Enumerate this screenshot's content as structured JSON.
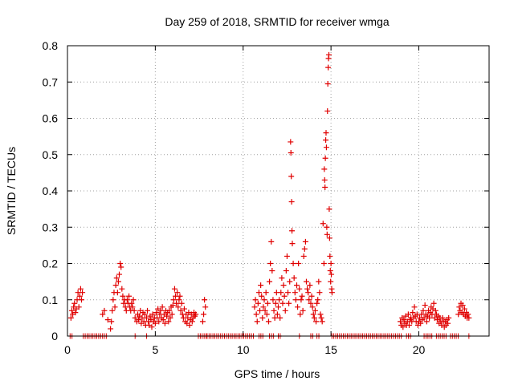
{
  "chart_data": {
    "type": "scatter",
    "title": "Day 259 of 2018, SRMTID for receiver wmga",
    "xlabel": "GPS time / hours",
    "ylabel": "SRMTID / TECUs",
    "xlim": [
      0,
      24
    ],
    "ylim": [
      0,
      0.8
    ],
    "xticks": [
      0,
      5,
      10,
      15,
      20
    ],
    "yticks": [
      0,
      0.1,
      0.2,
      0.3,
      0.4,
      0.5,
      0.6,
      0.7,
      0.8
    ],
    "xtick_labels": [
      "0",
      "5",
      "10",
      "15",
      "20"
    ],
    "ytick_labels": [
      "0",
      "0.1",
      "0.2",
      "0.3",
      "0.4",
      "0.5",
      "0.6",
      "0.7",
      "0.8"
    ],
    "grid": true,
    "marker": "+",
    "color": "#e00000",
    "series": [
      {
        "name": "SRMTID",
        "points": [
          [
            0.2,
            0.05
          ],
          [
            0.25,
            0.07
          ],
          [
            0.3,
            0.06
          ],
          [
            0.35,
            0.08
          ],
          [
            0.4,
            0.09
          ],
          [
            0.45,
            0.065
          ],
          [
            0.5,
            0.075
          ],
          [
            0.55,
            0.1
          ],
          [
            0.6,
            0.12
          ],
          [
            0.65,
            0.08
          ],
          [
            0.7,
            0.11
          ],
          [
            0.75,
            0.13
          ],
          [
            0.8,
            0.1
          ],
          [
            0.85,
            0.12
          ],
          [
            2.0,
            0.06
          ],
          [
            2.1,
            0.07
          ],
          [
            2.3,
            0.045
          ],
          [
            2.45,
            0.02
          ],
          [
            2.5,
            0.04
          ],
          [
            2.55,
            0.07
          ],
          [
            2.6,
            0.1
          ],
          [
            2.65,
            0.12
          ],
          [
            2.7,
            0.08
          ],
          [
            2.75,
            0.14
          ],
          [
            2.8,
            0.16
          ],
          [
            2.85,
            0.12
          ],
          [
            2.9,
            0.15
          ],
          [
            2.95,
            0.17
          ],
          [
            3.0,
            0.2
          ],
          [
            3.05,
            0.19
          ],
          [
            3.1,
            0.13
          ],
          [
            3.15,
            0.11
          ],
          [
            3.2,
            0.09
          ],
          [
            3.25,
            0.1
          ],
          [
            3.3,
            0.08
          ],
          [
            3.35,
            0.07
          ],
          [
            3.4,
            0.1
          ],
          [
            3.45,
            0.09
          ],
          [
            3.5,
            0.11
          ],
          [
            3.55,
            0.08
          ],
          [
            3.6,
            0.07
          ],
          [
            3.65,
            0.09
          ],
          [
            3.7,
            0.08
          ],
          [
            3.75,
            0.1
          ],
          [
            3.8,
            0.07
          ],
          [
            3.85,
            0.05
          ],
          [
            3.95,
            0.04
          ],
          [
            4.0,
            0.06
          ],
          [
            4.05,
            0.045
          ],
          [
            4.1,
            0.055
          ],
          [
            4.15,
            0.07
          ],
          [
            4.2,
            0.035
          ],
          [
            4.25,
            0.05
          ],
          [
            4.3,
            0.065
          ],
          [
            4.35,
            0.04
          ],
          [
            4.4,
            0.06
          ],
          [
            4.45,
            0.03
          ],
          [
            4.5,
            0.05
          ],
          [
            4.55,
            0.07
          ],
          [
            4.6,
            0.04
          ],
          [
            4.65,
            0.03
          ],
          [
            4.7,
            0.055
          ],
          [
            4.75,
            0.045
          ],
          [
            4.8,
            0.025
          ],
          [
            4.85,
            0.06
          ],
          [
            4.9,
            0.04
          ],
          [
            4.95,
            0.05
          ],
          [
            5.0,
            0.035
          ],
          [
            5.05,
            0.065
          ],
          [
            5.1,
            0.05
          ],
          [
            5.15,
            0.075
          ],
          [
            5.2,
            0.04
          ],
          [
            5.25,
            0.06
          ],
          [
            5.3,
            0.07
          ],
          [
            5.35,
            0.05
          ],
          [
            5.4,
            0.08
          ],
          [
            5.45,
            0.045
          ],
          [
            5.5,
            0.06
          ],
          [
            5.55,
            0.035
          ],
          [
            5.6,
            0.07
          ],
          [
            5.65,
            0.055
          ],
          [
            5.7,
            0.065
          ],
          [
            5.75,
            0.04
          ],
          [
            5.8,
            0.07
          ],
          [
            5.85,
            0.05
          ],
          [
            5.9,
            0.08
          ],
          [
            5.95,
            0.06
          ],
          [
            6.0,
            0.085
          ],
          [
            6.05,
            0.1
          ],
          [
            6.1,
            0.13
          ],
          [
            6.15,
            0.11
          ],
          [
            6.2,
            0.09
          ],
          [
            6.25,
            0.12
          ],
          [
            6.3,
            0.08
          ],
          [
            6.35,
            0.1
          ],
          [
            6.4,
            0.11
          ],
          [
            6.45,
            0.07
          ],
          [
            6.5,
            0.09
          ],
          [
            6.55,
            0.06
          ],
          [
            6.6,
            0.05
          ],
          [
            6.65,
            0.075
          ],
          [
            6.7,
            0.04
          ],
          [
            6.75,
            0.06
          ],
          [
            6.8,
            0.035
          ],
          [
            6.85,
            0.05
          ],
          [
            6.9,
            0.065
          ],
          [
            6.95,
            0.03
          ],
          [
            7.0,
            0.045
          ],
          [
            7.05,
            0.06
          ],
          [
            7.1,
            0.04
          ],
          [
            7.15,
            0.05
          ],
          [
            7.2,
            0.065
          ],
          [
            7.25,
            0.055
          ],
          [
            7.3,
            0.06
          ],
          [
            7.7,
            0.04
          ],
          [
            7.75,
            0.06
          ],
          [
            7.8,
            0.1
          ],
          [
            7.85,
            0.08
          ],
          [
            10.65,
            0.08
          ],
          [
            10.7,
            0.1
          ],
          [
            10.75,
            0.06
          ],
          [
            10.8,
            0.04
          ],
          [
            10.85,
            0.09
          ],
          [
            10.9,
            0.12
          ],
          [
            10.95,
            0.07
          ],
          [
            11.0,
            0.14
          ],
          [
            11.05,
            0.11
          ],
          [
            11.1,
            0.05
          ],
          [
            11.15,
            0.08
          ],
          [
            11.2,
            0.1
          ],
          [
            11.25,
            0.07
          ],
          [
            11.3,
            0.12
          ],
          [
            11.35,
            0.06
          ],
          [
            11.4,
            0.09
          ],
          [
            11.45,
            0.04
          ],
          [
            11.5,
            0.15
          ],
          [
            11.55,
            0.2
          ],
          [
            11.6,
            0.26
          ],
          [
            11.65,
            0.18
          ],
          [
            11.7,
            0.1
          ],
          [
            11.75,
            0.07
          ],
          [
            11.8,
            0.05
          ],
          [
            11.85,
            0.09
          ],
          [
            11.9,
            0.12
          ],
          [
            11.95,
            0.06
          ],
          [
            12.0,
            0.08
          ],
          [
            12.05,
            0.1
          ],
          [
            12.1,
            0.05
          ],
          [
            12.15,
            0.12
          ],
          [
            12.2,
            0.16
          ],
          [
            12.25,
            0.09
          ],
          [
            12.3,
            0.14
          ],
          [
            12.35,
            0.11
          ],
          [
            12.4,
            0.07
          ],
          [
            12.45,
            0.18
          ],
          [
            12.5,
            0.22
          ],
          [
            12.55,
            0.12
          ],
          [
            12.6,
            0.09
          ],
          [
            12.65,
            0.15
          ],
          [
            12.7,
            0.535
          ],
          [
            12.72,
            0.505
          ],
          [
            12.74,
            0.44
          ],
          [
            12.76,
            0.37
          ],
          [
            12.78,
            0.29
          ],
          [
            12.8,
            0.255
          ],
          [
            12.85,
            0.2
          ],
          [
            12.9,
            0.16
          ],
          [
            12.95,
            0.12
          ],
          [
            13.0,
            0.1
          ],
          [
            13.05,
            0.14
          ],
          [
            13.1,
            0.08
          ],
          [
            13.15,
            0.2
          ],
          [
            13.2,
            0.13
          ],
          [
            13.25,
            0.06
          ],
          [
            13.3,
            0.1
          ],
          [
            13.35,
            0.11
          ],
          [
            13.4,
            0.07
          ],
          [
            13.45,
            0.22
          ],
          [
            13.5,
            0.24
          ],
          [
            13.55,
            0.26
          ],
          [
            13.6,
            0.15
          ],
          [
            13.65,
            0.13
          ],
          [
            13.7,
            0.12
          ],
          [
            13.75,
            0.1
          ],
          [
            13.8,
            0.14
          ],
          [
            13.85,
            0.09
          ],
          [
            13.9,
            0.11
          ],
          [
            13.95,
            0.08
          ],
          [
            14.0,
            0.06
          ],
          [
            14.05,
            0.05
          ],
          [
            14.1,
            0.07
          ],
          [
            14.15,
            0.04
          ],
          [
            14.2,
            0.09
          ],
          [
            14.25,
            0.1
          ],
          [
            14.3,
            0.15
          ],
          [
            14.35,
            0.12
          ],
          [
            14.4,
            0.06
          ],
          [
            14.45,
            0.05
          ],
          [
            14.5,
            0.04
          ],
          [
            14.55,
            0.31
          ],
          [
            14.6,
            0.2
          ],
          [
            14.62,
            0.46
          ],
          [
            14.64,
            0.43
          ],
          [
            14.66,
            0.41
          ],
          [
            14.68,
            0.49
          ],
          [
            14.7,
            0.54
          ],
          [
            14.72,
            0.56
          ],
          [
            14.74,
            0.52
          ],
          [
            14.76,
            0.3
          ],
          [
            14.78,
            0.28
          ],
          [
            14.8,
            0.62
          ],
          [
            14.82,
            0.695
          ],
          [
            14.84,
            0.74
          ],
          [
            14.86,
            0.765
          ],
          [
            14.88,
            0.775
          ],
          [
            14.9,
            0.35
          ],
          [
            14.92,
            0.27
          ],
          [
            14.94,
            0.22
          ],
          [
            14.96,
            0.18
          ],
          [
            14.98,
            0.15
          ],
          [
            15.0,
            0.2
          ],
          [
            15.02,
            0.17
          ],
          [
            15.04,
            0.13
          ],
          [
            15.06,
            0.12
          ],
          [
            18.95,
            0.04
          ],
          [
            19.0,
            0.03
          ],
          [
            19.05,
            0.05
          ],
          [
            19.1,
            0.025
          ],
          [
            19.15,
            0.045
          ],
          [
            19.2,
            0.035
          ],
          [
            19.25,
            0.055
          ],
          [
            19.3,
            0.03
          ],
          [
            19.35,
            0.04
          ],
          [
            19.4,
            0.06
          ],
          [
            19.45,
            0.03
          ],
          [
            19.5,
            0.045
          ],
          [
            19.55,
            0.05
          ],
          [
            19.6,
            0.04
          ],
          [
            19.65,
            0.065
          ],
          [
            19.7,
            0.05
          ],
          [
            19.75,
            0.08
          ],
          [
            19.8,
            0.055
          ],
          [
            19.85,
            0.04
          ],
          [
            19.9,
            0.06
          ],
          [
            19.95,
            0.03
          ],
          [
            20.0,
            0.04
          ],
          [
            20.05,
            0.05
          ],
          [
            20.1,
            0.035
          ],
          [
            20.15,
            0.06
          ],
          [
            20.2,
            0.045
          ],
          [
            20.25,
            0.07
          ],
          [
            20.3,
            0.05
          ],
          [
            20.35,
            0.085
          ],
          [
            20.4,
            0.06
          ],
          [
            20.45,
            0.04
          ],
          [
            20.5,
            0.055
          ],
          [
            20.55,
            0.07
          ],
          [
            20.6,
            0.05
          ],
          [
            20.65,
            0.065
          ],
          [
            20.7,
            0.08
          ],
          [
            20.75,
            0.06
          ],
          [
            20.8,
            0.075
          ],
          [
            20.85,
            0.09
          ],
          [
            20.9,
            0.05
          ],
          [
            20.95,
            0.07
          ],
          [
            21.0,
            0.06
          ],
          [
            21.05,
            0.045
          ],
          [
            21.1,
            0.055
          ],
          [
            21.15,
            0.035
          ],
          [
            21.2,
            0.05
          ],
          [
            21.25,
            0.04
          ],
          [
            21.3,
            0.03
          ],
          [
            21.35,
            0.05
          ],
          [
            21.4,
            0.04
          ],
          [
            21.45,
            0.025
          ],
          [
            21.5,
            0.04
          ],
          [
            21.55,
            0.03
          ],
          [
            21.6,
            0.045
          ],
          [
            21.65,
            0.035
          ],
          [
            21.7,
            0.05
          ],
          [
            22.25,
            0.06
          ],
          [
            22.3,
            0.08
          ],
          [
            22.35,
            0.07
          ],
          [
            22.4,
            0.09
          ],
          [
            22.45,
            0.065
          ],
          [
            22.5,
            0.085
          ],
          [
            22.55,
            0.06
          ],
          [
            22.6,
            0.075
          ],
          [
            22.65,
            0.055
          ],
          [
            22.7,
            0.065
          ],
          [
            22.75,
            0.05
          ],
          [
            22.8,
            0.06
          ],
          [
            22.85,
            0.05
          ]
        ]
      }
    ],
    "zero_segments": [
      [
        0.15,
        0.3
      ],
      [
        0.9,
        2.0
      ],
      [
        2.1,
        2.3
      ],
      [
        3.85,
        3.95
      ],
      [
        4.5,
        4.6
      ],
      [
        7.45,
        7.95
      ],
      [
        7.95,
        10.6
      ],
      [
        10.9,
        11.2
      ],
      [
        11.5,
        11.8
      ],
      [
        12.0,
        12.2
      ],
      [
        13.2,
        13.3
      ],
      [
        13.85,
        14.0
      ],
      [
        14.2,
        14.4
      ],
      [
        15.05,
        19.1
      ],
      [
        19.3,
        19.6
      ],
      [
        20.3,
        20.8
      ],
      [
        21.0,
        21.6
      ],
      [
        21.8,
        22.3
      ],
      [
        22.85,
        22.95
      ]
    ]
  }
}
